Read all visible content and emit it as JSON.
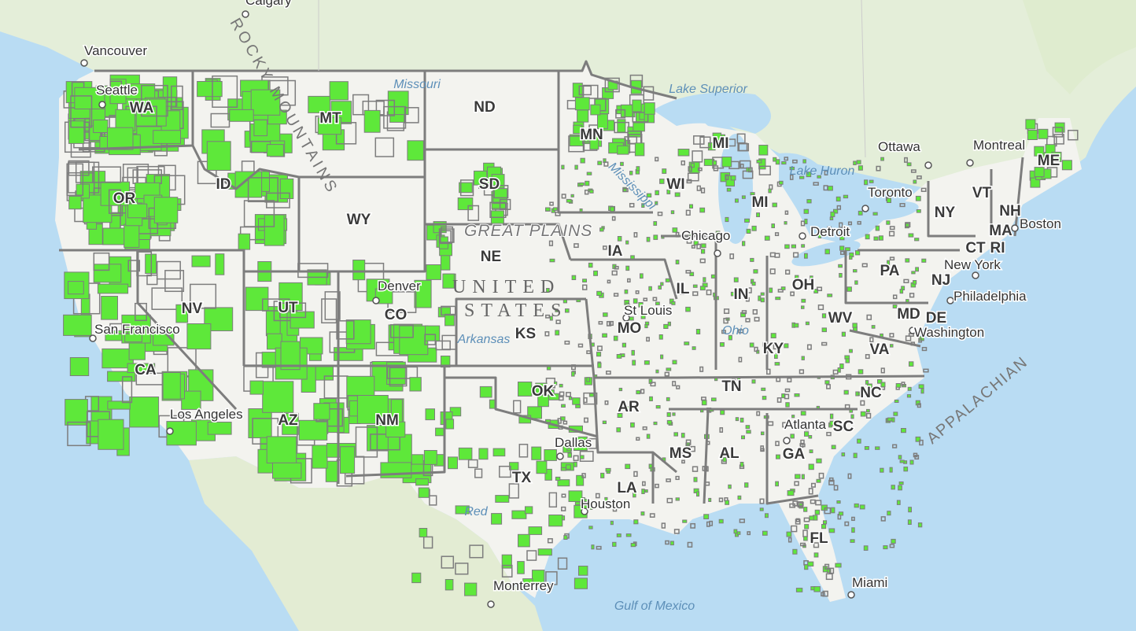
{
  "map": {
    "basemap": "topographic",
    "highlight_color": "#5ee83a",
    "highlight_outline": "#7d7d7d",
    "state_labels": [
      "WA",
      "OR",
      "CA",
      "ID",
      "NV",
      "MT",
      "WY",
      "UT",
      "AZ",
      "CO",
      "NM",
      "ND",
      "SD",
      "NE",
      "KS",
      "OK",
      "TX",
      "MN",
      "IA",
      "MO",
      "AR",
      "LA",
      "WI",
      "IL",
      "MS",
      "MI",
      "MI",
      "IN",
      "KY",
      "TN",
      "AL",
      "OH",
      "WV",
      "GA",
      "FL",
      "SC",
      "NC",
      "VA",
      "PA",
      "NY",
      "MD",
      "DE",
      "NJ",
      "VT",
      "NH",
      "MA",
      "CT",
      "RI",
      "ME"
    ],
    "city_labels": [
      "Calgary",
      "Vancouver",
      "Seattle",
      "San Francisco",
      "Los Angeles",
      "Denver",
      "Dallas",
      "Houston",
      "Monterrey",
      "St Louis",
      "Chicago",
      "Detroit",
      "Toronto",
      "Ottawa",
      "Montreal",
      "Boston",
      "New York",
      "Philadelphia",
      "Washington",
      "Atlanta",
      "Miami"
    ],
    "water_labels": [
      "Lake Superior",
      "Lake Huron",
      "Gulf of Mexico",
      "Missouri",
      "Mississippi",
      "Ohio",
      "Arkansas",
      "Red"
    ],
    "region_labels": [
      "GREAT PLAINS",
      "UNITED",
      "STATES",
      "ROCKY MOUNTAINS",
      "APPALACHIAN"
    ]
  }
}
